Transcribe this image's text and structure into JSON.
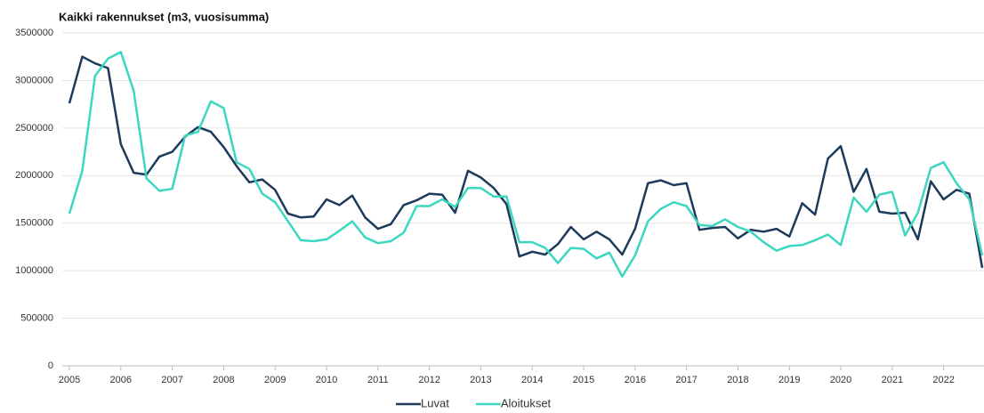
{
  "chart_data": {
    "type": "line",
    "title": "Kaikki rakennukset (m3, vuosisumma)",
    "categories": [
      "2005",
      null,
      null,
      null,
      "2006",
      null,
      null,
      null,
      "2007",
      null,
      null,
      null,
      "2008",
      null,
      null,
      null,
      "2009",
      null,
      null,
      null,
      "2010",
      null,
      null,
      null,
      "2011",
      null,
      null,
      null,
      "2012",
      null,
      null,
      null,
      "2013",
      null,
      null,
      null,
      "2014",
      null,
      null,
      null,
      "2015",
      null,
      null,
      null,
      "2016",
      null,
      null,
      null,
      "2017",
      null,
      null,
      null,
      "2018",
      null,
      null,
      null,
      "2019",
      null,
      null,
      null,
      "2020",
      null,
      null,
      null,
      "2021",
      null,
      null,
      null,
      "2022",
      null,
      null,
      null
    ],
    "series": [
      {
        "name": "Luvat",
        "color": "#1d3a5a",
        "values": [
          2760000,
          3250000,
          3180000,
          3130000,
          2330000,
          2030000,
          2010000,
          2200000,
          2250000,
          2410000,
          2510000,
          2460000,
          2300000,
          2100000,
          1930000,
          1960000,
          1850000,
          1600000,
          1560000,
          1570000,
          1750000,
          1690000,
          1790000,
          1560000,
          1440000,
          1490000,
          1690000,
          1740000,
          1810000,
          1800000,
          1610000,
          2050000,
          1980000,
          1870000,
          1700000,
          1150000,
          1200000,
          1170000,
          1280000,
          1460000,
          1330000,
          1410000,
          1330000,
          1170000,
          1440000,
          1920000,
          1950000,
          1900000,
          1920000,
          1430000,
          1450000,
          1460000,
          1340000,
          1430000,
          1410000,
          1440000,
          1360000,
          1710000,
          1590000,
          2180000,
          2310000,
          1830000,
          2070000,
          1620000,
          1600000,
          1610000,
          1330000,
          1940000,
          1750000,
          1850000,
          1810000,
          1030000
        ]
      },
      {
        "name": "Aloitukset",
        "color": "#3dd6c0",
        "values": [
          1600000,
          2050000,
          3050000,
          3230000,
          3300000,
          2890000,
          1970000,
          1840000,
          1860000,
          2420000,
          2460000,
          2780000,
          2710000,
          2140000,
          2070000,
          1810000,
          1720000,
          1520000,
          1320000,
          1310000,
          1330000,
          1420000,
          1520000,
          1350000,
          1290000,
          1310000,
          1400000,
          1680000,
          1680000,
          1750000,
          1670000,
          1870000,
          1870000,
          1780000,
          1780000,
          1300000,
          1300000,
          1240000,
          1080000,
          1240000,
          1230000,
          1130000,
          1190000,
          940000,
          1160000,
          1520000,
          1650000,
          1720000,
          1680000,
          1480000,
          1470000,
          1540000,
          1460000,
          1410000,
          1300000,
          1210000,
          1260000,
          1270000,
          1320000,
          1380000,
          1270000,
          1770000,
          1620000,
          1800000,
          1830000,
          1370000,
          1610000,
          2080000,
          2140000,
          1920000,
          1750000,
          1160000
        ]
      }
    ],
    "ylim": [
      0,
      3500000
    ],
    "yticks": [
      0,
      500000,
      1000000,
      1500000,
      2000000,
      2500000,
      3000000,
      3500000
    ],
    "grid": true,
    "legend": "bottom"
  }
}
